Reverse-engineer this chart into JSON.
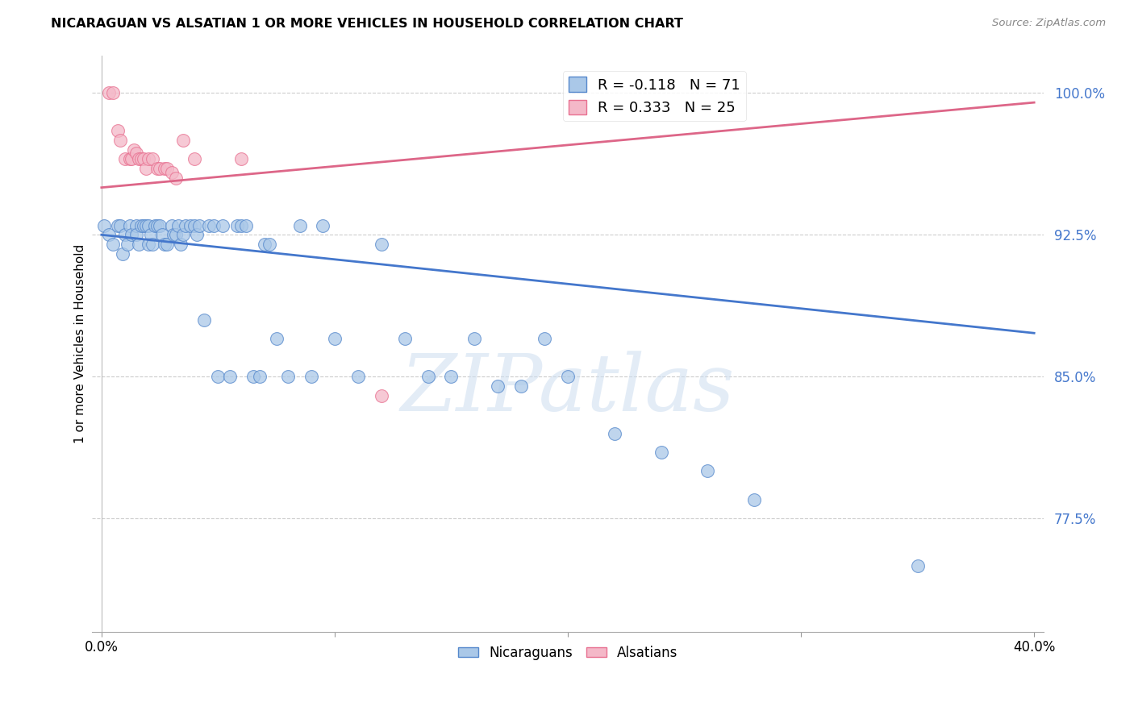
{
  "title": "NICARAGUAN VS ALSATIAN 1 OR MORE VEHICLES IN HOUSEHOLD CORRELATION CHART",
  "source": "Source: ZipAtlas.com",
  "ylabel": "1 or more Vehicles in Household",
  "ylim": [
    0.715,
    1.02
  ],
  "xlim": [
    -0.004,
    0.404
  ],
  "yticks": [
    0.775,
    0.85,
    0.925,
    1.0
  ],
  "ytick_labels": [
    "77.5%",
    "85.0%",
    "92.5%",
    "100.0%"
  ],
  "xtick_vals": [
    0.0,
    0.1,
    0.2,
    0.3,
    0.4
  ],
  "xtick_labels": [
    "0.0%",
    "",
    "",
    "",
    "40.0%"
  ],
  "legend_blue_r": "R = -0.118",
  "legend_blue_n": "N = 71",
  "legend_pink_r": "R = 0.333",
  "legend_pink_n": "N = 25",
  "blue_color": "#aac8e8",
  "pink_color": "#f4b8c8",
  "blue_edge_color": "#5588cc",
  "pink_edge_color": "#e87090",
  "blue_line_color": "#4477cc",
  "pink_line_color": "#dd6688",
  "watermark": "ZIPatlas",
  "blue_scatter_x": [
    0.001,
    0.003,
    0.005,
    0.007,
    0.008,
    0.009,
    0.01,
    0.011,
    0.012,
    0.013,
    0.015,
    0.015,
    0.016,
    0.017,
    0.018,
    0.019,
    0.02,
    0.02,
    0.021,
    0.022,
    0.023,
    0.024,
    0.025,
    0.026,
    0.027,
    0.028,
    0.03,
    0.031,
    0.032,
    0.033,
    0.034,
    0.035,
    0.036,
    0.038,
    0.04,
    0.041,
    0.042,
    0.044,
    0.046,
    0.048,
    0.05,
    0.052,
    0.055,
    0.058,
    0.06,
    0.062,
    0.065,
    0.068,
    0.07,
    0.072,
    0.075,
    0.08,
    0.085,
    0.09,
    0.095,
    0.1,
    0.11,
    0.12,
    0.13,
    0.14,
    0.15,
    0.16,
    0.17,
    0.18,
    0.19,
    0.2,
    0.22,
    0.24,
    0.26,
    0.28,
    0.35
  ],
  "blue_scatter_y": [
    0.93,
    0.925,
    0.92,
    0.93,
    0.93,
    0.915,
    0.925,
    0.92,
    0.93,
    0.925,
    0.93,
    0.925,
    0.92,
    0.93,
    0.93,
    0.93,
    0.92,
    0.93,
    0.925,
    0.92,
    0.93,
    0.93,
    0.93,
    0.925,
    0.92,
    0.92,
    0.93,
    0.925,
    0.925,
    0.93,
    0.92,
    0.925,
    0.93,
    0.93,
    0.93,
    0.925,
    0.93,
    0.88,
    0.93,
    0.93,
    0.85,
    0.93,
    0.85,
    0.93,
    0.93,
    0.93,
    0.85,
    0.85,
    0.92,
    0.92,
    0.87,
    0.85,
    0.93,
    0.85,
    0.93,
    0.87,
    0.85,
    0.92,
    0.87,
    0.85,
    0.85,
    0.87,
    0.845,
    0.845,
    0.87,
    0.85,
    0.82,
    0.81,
    0.8,
    0.785,
    0.75
  ],
  "pink_scatter_x": [
    0.003,
    0.005,
    0.007,
    0.008,
    0.01,
    0.012,
    0.013,
    0.014,
    0.015,
    0.016,
    0.017,
    0.018,
    0.019,
    0.02,
    0.022,
    0.024,
    0.025,
    0.027,
    0.028,
    0.03,
    0.032,
    0.035,
    0.04,
    0.06,
    0.12
  ],
  "pink_scatter_y": [
    1.0,
    1.0,
    0.98,
    0.975,
    0.965,
    0.965,
    0.965,
    0.97,
    0.968,
    0.965,
    0.965,
    0.965,
    0.96,
    0.965,
    0.965,
    0.96,
    0.96,
    0.96,
    0.96,
    0.958,
    0.955,
    0.975,
    0.965,
    0.965,
    0.84
  ],
  "blue_trend_x": [
    0.0,
    0.4
  ],
  "blue_trend_y": [
    0.925,
    0.873
  ],
  "pink_trend_x": [
    0.0,
    0.4
  ],
  "pink_trend_y": [
    0.95,
    0.995
  ]
}
